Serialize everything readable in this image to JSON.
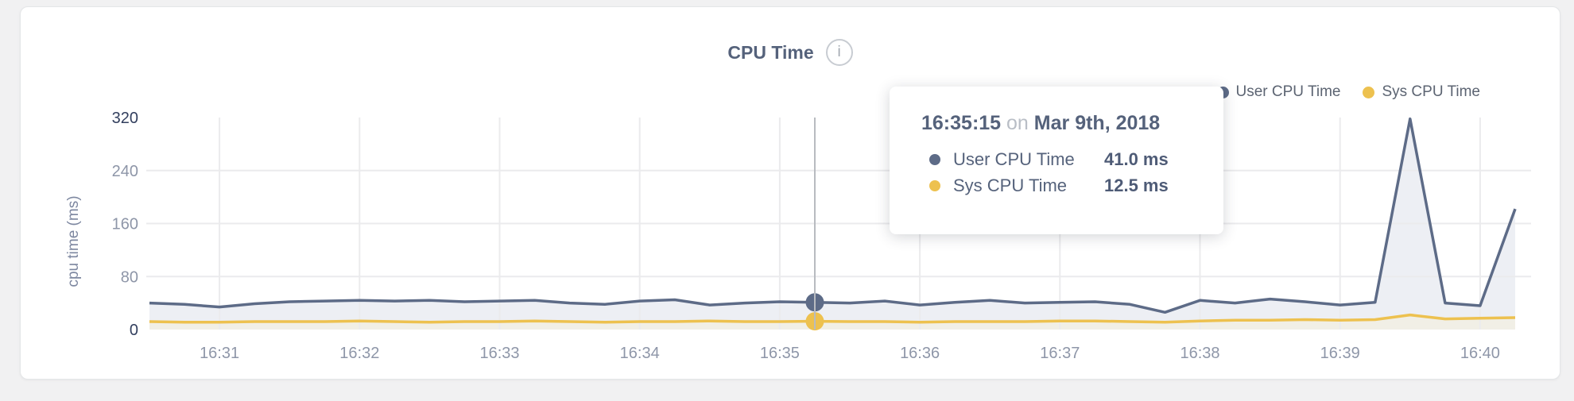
{
  "header": {
    "title": "CPU Time",
    "info_glyph": "i"
  },
  "legend": [
    {
      "label": "User CPU Time",
      "color": "#5d6b87"
    },
    {
      "label": "Sys CPU Time",
      "color": "#edc14f"
    }
  ],
  "tooltip": {
    "time": "16:35:15",
    "conj": "on",
    "date": "Mar 9th, 2018",
    "rows": [
      {
        "label": "User CPU Time",
        "value": "41.0 ms",
        "color": "#5d6b87"
      },
      {
        "label": "Sys CPU Time",
        "value": "12.5 ms",
        "color": "#edc14f"
      }
    ]
  },
  "axis_colors": {
    "tick": "#8e96a8",
    "tick_emphasis": "#323f5e",
    "axis_title": "#7d87a0",
    "grid": "#ebebed",
    "crosshair": "#b8bbc0"
  },
  "chart_data": {
    "type": "area",
    "title": "CPU Time",
    "xlabel": "",
    "ylabel": "cpu time (ms)",
    "ylim": [
      0,
      320
    ],
    "yticks": [
      0,
      80,
      160,
      240,
      320
    ],
    "grid_yticks": [
      80,
      160,
      240
    ],
    "xticks": [
      "16:31",
      "16:32",
      "16:33",
      "16:34",
      "16:35",
      "16:36",
      "16:37",
      "16:38",
      "16:39",
      "16:40"
    ],
    "grid": true,
    "legend_position": "top-right",
    "x": [
      "16:30:30",
      "16:30:45",
      "16:31:00",
      "16:31:15",
      "16:31:30",
      "16:31:45",
      "16:32:00",
      "16:32:15",
      "16:32:30",
      "16:32:45",
      "16:33:00",
      "16:33:15",
      "16:33:30",
      "16:33:45",
      "16:34:00",
      "16:34:15",
      "16:34:30",
      "16:34:45",
      "16:35:00",
      "16:35:15",
      "16:35:30",
      "16:35:45",
      "16:36:00",
      "16:36:15",
      "16:36:30",
      "16:36:45",
      "16:37:00",
      "16:37:15",
      "16:37:30",
      "16:37:45",
      "16:38:00",
      "16:38:15",
      "16:38:30",
      "16:38:45",
      "16:39:00",
      "16:39:15",
      "16:39:30",
      "16:39:45",
      "16:40:00",
      "16:40:15"
    ],
    "series": [
      {
        "name": "User CPU Time",
        "color": "#5d6b87",
        "fill": "#edeff4",
        "unit": "ms",
        "values": [
          40,
          38,
          34,
          39,
          42,
          43,
          44,
          43,
          44,
          42,
          43,
          44,
          40,
          38,
          43,
          45,
          37,
          40,
          42,
          41,
          40,
          43,
          37,
          41,
          44,
          40,
          41,
          42,
          38,
          26,
          44,
          40,
          46,
          42,
          37,
          41,
          318,
          40,
          36,
          182
        ]
      },
      {
        "name": "Sys CPU Time",
        "color": "#edc14f",
        "fill": "#f1efe6",
        "unit": "ms",
        "values": [
          12,
          11,
          11,
          12,
          12,
          12,
          13,
          12,
          11,
          12,
          12,
          13,
          12,
          11,
          12,
          12,
          13,
          12,
          12,
          12.5,
          12,
          12,
          11,
          12,
          12,
          12,
          13,
          13,
          12,
          11,
          13,
          14,
          14,
          15,
          14,
          15,
          22,
          16,
          17,
          18
        ]
      }
    ],
    "highlight": {
      "x": "16:35:15",
      "index": 19,
      "values": [
        41.0,
        12.5
      ]
    }
  }
}
